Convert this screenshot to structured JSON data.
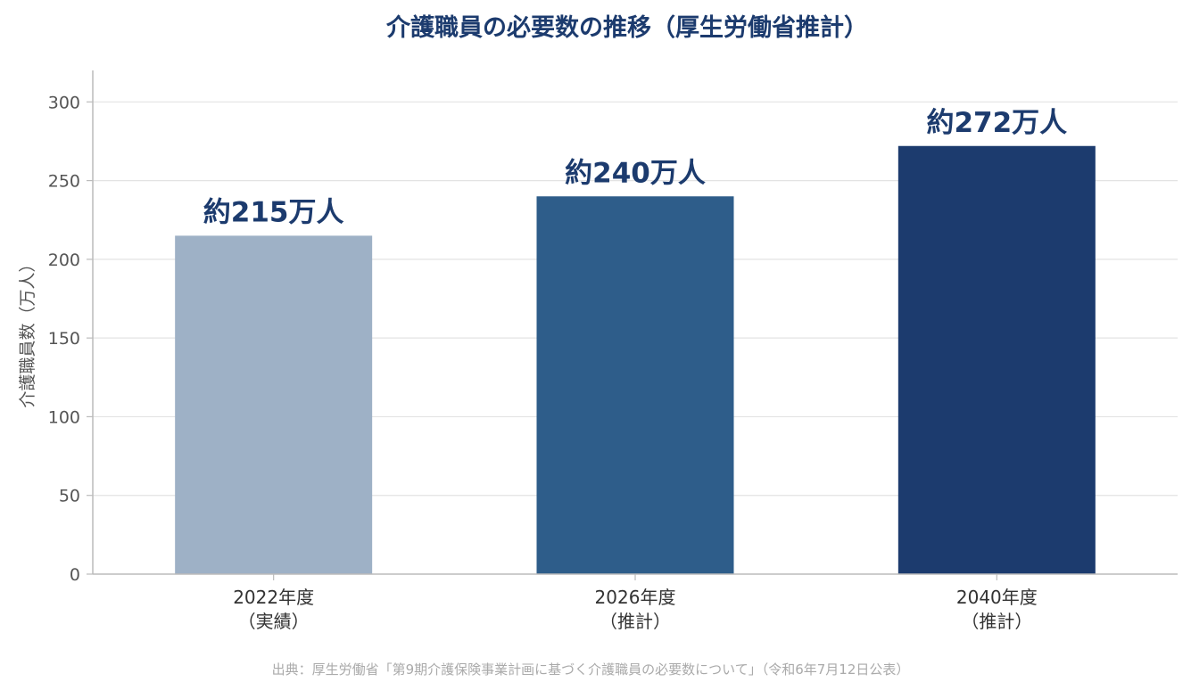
{
  "chart_data": {
    "type": "bar",
    "title": "介護職員の必要数の推移（厚生労働省推計）",
    "ylabel": "介護職員数（万人）",
    "xlabel": "",
    "ylim": [
      0,
      320
    ],
    "yticks": [
      0,
      50,
      100,
      150,
      200,
      250,
      300
    ],
    "categories": [
      [
        "2022年度",
        "（実績）"
      ],
      [
        "2026年度",
        "（推計）"
      ],
      [
        "2040年度",
        "（推計）"
      ]
    ],
    "values": [
      215,
      240,
      272
    ],
    "data_labels": [
      "約215万人",
      "約240万人",
      "約272万人"
    ],
    "bar_colors": [
      "#9eb1c6",
      "#2e5d8a",
      "#1c3b6e"
    ],
    "grid": "horizontal",
    "legend": "none",
    "source": "出典：厚生労働省「第9期介護保険事業計画に基づく介護職員の必要数について」（令和6年7月12日公表）"
  },
  "colors": {
    "title": "#1c3b6e",
    "data_label": "#1c3b6e",
    "grid": "#e3e3e3",
    "axis": "#bbbbbb"
  }
}
